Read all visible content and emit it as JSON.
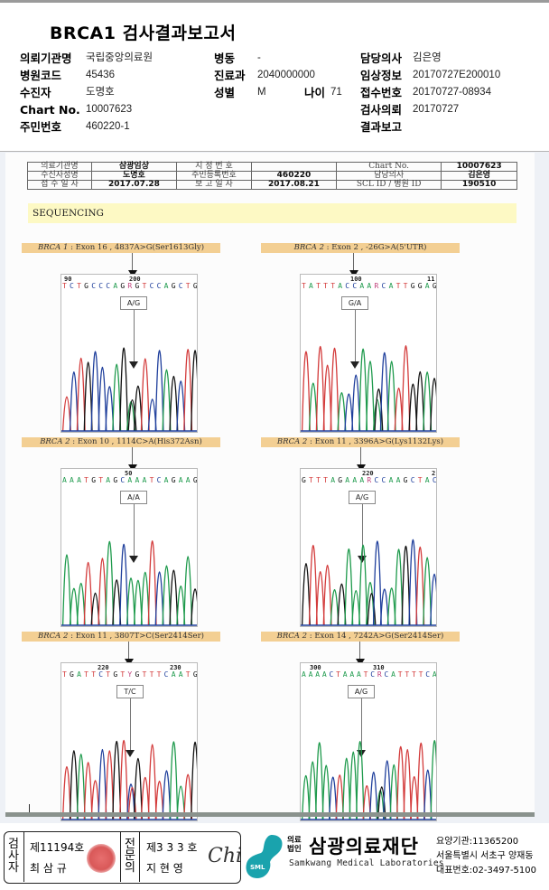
{
  "report": {
    "title": "BRCA1 검사결과보고서"
  },
  "patient_info": {
    "col1": [
      {
        "label": "의뢰기관명",
        "value": "국립중앙의료원"
      },
      {
        "label": "병원코드",
        "value": "45436"
      },
      {
        "label": "수진자",
        "value": "도명호"
      },
      {
        "label": "Chart No.",
        "value": "10007623"
      },
      {
        "label": "주민번호",
        "value": "460220-1"
      }
    ],
    "col2": [
      {
        "label": "병동",
        "value": "-"
      },
      {
        "label": "진료과",
        "value": "2040000000"
      },
      {
        "label": "성별",
        "value": "M",
        "age_label": "나이",
        "age_value": "71"
      }
    ],
    "col3": [
      {
        "label": "담당의사",
        "value": "김은영"
      },
      {
        "label": "임상정보",
        "value": "20170727E200010"
      },
      {
        "label": "접수번호",
        "value": "20170727-08934"
      },
      {
        "label": "검사의뢰",
        "value": "20170727"
      },
      {
        "label": "결과보고",
        "value": ""
      }
    ]
  },
  "scan_header": {
    "rows": [
      [
        "의료기관명",
        "삼광임상",
        "지 정 번 호",
        "",
        "Chart No.",
        "10007623"
      ],
      [
        "수신자성명",
        "도명호",
        "주민등록번호",
        "460220",
        "담당의사",
        "김은영"
      ],
      [
        "접 수 일 자",
        "2017.07.28",
        "보 고 일 자",
        "2017.08.21",
        "SCL  ID / 병원 ID",
        "190510"
      ]
    ]
  },
  "section_title": "SEQUENCING",
  "panels": [
    {
      "gene": "BRCA 1",
      "desc": " : Exon 16 , 4837A>G(Ser1613Gly)",
      "pos_left": "90",
      "pos_right": "200",
      "sequence": "TCTGCCCAGRGTCCAGCTG",
      "genotype": "A/G"
    },
    {
      "gene": "BRCA 2",
      "desc": " : Exon 2 , -26G>A(5'UTR)",
      "pos_left": "100",
      "pos_right": "11",
      "sequence": "TATTTACCAARCATTGGAG",
      "genotype": "G/A"
    },
    {
      "gene": "BRCA 2",
      "desc": " : Exon 10 , 1114C>A(His372Asn)",
      "pos_left": "50",
      "pos_right": "",
      "sequence": "AAATGTAGCAAATCAGAAG",
      "genotype": "A/A"
    },
    {
      "gene": "BRCA 2",
      "desc": " : Exon 11 , 3396A>G(Lys1132Lys)",
      "pos_left": "220",
      "pos_right": "2",
      "sequence": "GTTTAGAAARCCAAGCTAC",
      "genotype": "A/G"
    },
    {
      "gene": "BRCA 2",
      "desc": " : Exon 11 , 3807T>C(Ser2414Ser)",
      "pos_left": "220",
      "pos_right": "230",
      "sequence": "TGATTCTGTYGTTTCAATG",
      "genotype": "T/C"
    },
    {
      "gene": "BRCA 2",
      "desc": " : Exon 14 , 7242A>G(Ser2414Ser)",
      "pos_left": "300",
      "pos_right": "310",
      "sequence": "AAAACTAAATCRCATTTTCA",
      "genotype": "A/G"
    }
  ],
  "base_colors": {
    "A": "#1e9a4c",
    "T": "#d33b3b",
    "G": "#111111",
    "C": "#1f3f9c",
    "R": "#c0407a",
    "Y": "#c0407a"
  },
  "footer": {
    "inspector_label": "검사자",
    "inspector_no": "제11194호",
    "inspector_name": "최 삼 규",
    "specialist_label": "전문의",
    "specialist_no": "제3 3 3 호",
    "specialist_name": "지 현 영",
    "signature_text": "Chi",
    "logo_text": "SML",
    "org_type": "의료법인",
    "org_name": "삼광의료재단",
    "org_eng": "Samkwang Medical Laboratories",
    "code_line": "요양기관:11365200",
    "address_line": "서울특별시 서초구 양재동",
    "phone_line": "대표번호:02-3497-5100",
    "logo_color": "#1aa3ad"
  }
}
